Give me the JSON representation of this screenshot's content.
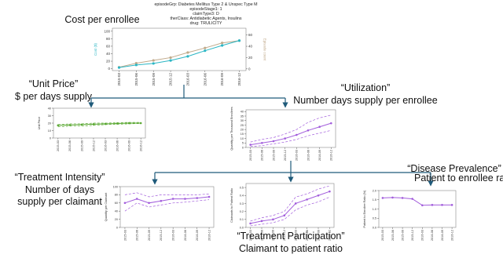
{
  "chart_data": [
    {
      "type": "line",
      "title": "Cost per enrollee",
      "header": [
        "episodeGrp: Diabetes Mellitus Type 2 & Unspec Type M",
        "episodeStage1: 1",
        "claimType3: D",
        "therClass: Antidiabetic Agents, Insulins",
        "drug: TRULICITY"
      ],
      "y_label": "Cost ($)",
      "y2_label": "Episode count",
      "categories": [
        "2015-03",
        "2015-06",
        "2015-09",
        "2015-12",
        "2016-03",
        "2016-06",
        "2016-09",
        "2016-12"
      ],
      "ylim": [
        -5,
        108
      ],
      "yticks": [
        0,
        20,
        40,
        60,
        80,
        100
      ],
      "y2lim": [
        -3,
        72
      ],
      "y2ticks": [
        0,
        20,
        40,
        60
      ],
      "series": [
        {
          "color": "#c0a98a",
          "axis": "y2",
          "style": "solid",
          "marker": true,
          "values": [
            3,
            10,
            15,
            20,
            29,
            37,
            46,
            50
          ]
        },
        {
          "color": "#2bb6c4",
          "style": "solid",
          "marker": true,
          "values": [
            3,
            10,
            14,
            22,
            33,
            48,
            62,
            75
          ]
        }
      ]
    },
    {
      "type": "line",
      "y_label": "Unit Price",
      "categories": [
        "2015-03",
        "2015-06",
        "2015-09",
        "2015-12",
        "2016-03",
        "2016-06",
        "2016-09",
        "2016-12"
      ],
      "ylim": [
        0,
        40
      ],
      "yticks": [
        0,
        10,
        20,
        30,
        40
      ],
      "series": [
        {
          "color": "#5aa832",
          "style": "dashed",
          "marker": false,
          "values": [
            18,
            19,
            19,
            20,
            20,
            20.5,
            21,
            21
          ]
        },
        {
          "color": "#5aa832",
          "style": "solid",
          "marker": true,
          "values": [
            17,
            17.5,
            18,
            18.5,
            19,
            19.5,
            20,
            20
          ]
        },
        {
          "color": "#5aa832",
          "style": "dashed",
          "marker": false,
          "values": [
            15,
            16,
            16,
            17,
            18,
            18.5,
            19,
            19.5
          ]
        }
      ]
    },
    {
      "type": "line",
      "y_label": "Quantity per Thousand Enrollees",
      "categories": [
        "2015-03",
        "2015-06",
        "2015-09",
        "2015-12",
        "2016-03",
        "2016-06",
        "2016-09",
        "2016-12"
      ],
      "ylim": [
        0,
        42
      ],
      "yticks": [
        0,
        5,
        10,
        15,
        20,
        25,
        30,
        35,
        40
      ],
      "series": [
        {
          "color": "#a25ddc",
          "style": "dashed",
          "marker": false,
          "values": [
            6,
            9,
            11,
            15,
            20,
            28,
            33,
            36
          ]
        },
        {
          "color": "#a25ddc",
          "style": "solid",
          "marker": true,
          "values": [
            3,
            5,
            7,
            10,
            14,
            19,
            23,
            27
          ]
        },
        {
          "color": "#a25ddc",
          "style": "dashed",
          "marker": false,
          "values": [
            1,
            2,
            4,
            6,
            9,
            13,
            16,
            19
          ]
        }
      ]
    },
    {
      "type": "line",
      "y_label": "Quantity per Claimant",
      "categories": [
        "2015-03",
        "2015-06",
        "2015-09",
        "2015-12",
        "2016-03",
        "2016-06",
        "2016-09",
        "2016-12"
      ],
      "ylim": [
        0,
        100
      ],
      "yticks": [
        0,
        20,
        40,
        60,
        80,
        100
      ],
      "series": [
        {
          "color": "#a25ddc",
          "style": "dashed",
          "marker": false,
          "values": [
            80,
            85,
            75,
            80,
            80,
            80,
            80,
            82
          ]
        },
        {
          "color": "#a25ddc",
          "style": "solid",
          "marker": true,
          "values": [
            60,
            70,
            60,
            65,
            70,
            70,
            72,
            75
          ]
        },
        {
          "color": "#a25ddc",
          "style": "dashed",
          "marker": false,
          "values": [
            40,
            60,
            50,
            55,
            60,
            62,
            65,
            68
          ]
        }
      ]
    },
    {
      "type": "line",
      "y_label": "Claimants to Patient Ratio",
      "categories": [
        "2015-03",
        "2015-06",
        "2015-09",
        "2015-12",
        "2016-03",
        "2016-06",
        "2016-09",
        "2016-12"
      ],
      "ylim": [
        0,
        0.55
      ],
      "yticks": [
        {
          "value": 0,
          "label": "0.0"
        },
        0.1,
        0.2,
        0.3,
        0.4,
        0.5
      ],
      "series": [
        {
          "color": "#a25ddc",
          "style": "dashed",
          "marker": false,
          "values": [
            0.08,
            0.12,
            0.15,
            0.2,
            0.38,
            0.42,
            0.48,
            0.52
          ]
        },
        {
          "color": "#a25ddc",
          "style": "solid",
          "marker": true,
          "values": [
            0.05,
            0.08,
            0.1,
            0.15,
            0.3,
            0.35,
            0.4,
            0.45
          ]
        },
        {
          "color": "#a25ddc",
          "style": "dashed",
          "marker": false,
          "values": [
            0.02,
            0.04,
            0.06,
            0.1,
            0.22,
            0.28,
            0.32,
            0.38
          ]
        }
      ]
    },
    {
      "type": "line",
      "y_label": "Patient to Enrollee Ratio (%)",
      "categories": [
        "2015-03",
        "2015-06",
        "2015-09",
        "2015-12",
        "2016-03",
        "2016-06",
        "2016-09",
        "2016-12"
      ],
      "ylim": [
        0,
        2
      ],
      "yticks": [
        {
          "value": 0,
          "label": "0.0"
        },
        0.5,
        {
          "value": 1,
          "label": "1.0"
        },
        1.5,
        {
          "value": 2,
          "label": "2.0"
        }
      ],
      "series": [
        {
          "color": "#a25ddc",
          "style": "solid",
          "marker": true,
          "values": [
            1.6,
            1.62,
            1.6,
            1.55,
            1.2,
            1.22,
            1.22,
            1.22
          ]
        }
      ]
    }
  ],
  "annotations": [
    "“Unit Price”",
    "$ per days supply",
    "“Utilization”",
    "Number days supply per enrollee",
    "“Treatment Intensity”",
    "Number of days",
    "supply per claimant",
    "“Treatment Participation”",
    "Claimant to patient ratio",
    "“Disease Prevalence”",
    "Patient to enrollee ratio"
  ]
}
